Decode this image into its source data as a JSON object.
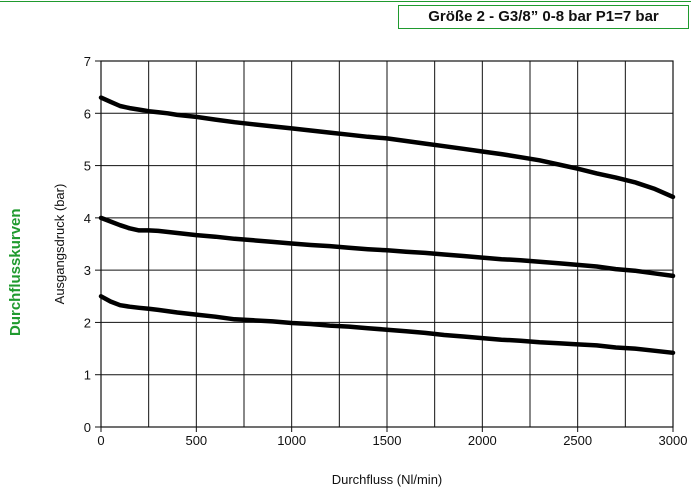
{
  "side_title": "Durchflusskurven",
  "header_label": "Größe 2 - G3/8” 0-8 bar P1=7 bar",
  "colors": {
    "accent": "#1f9a2e",
    "grid": "#111111",
    "series": "#000000"
  },
  "chart_data": {
    "type": "line",
    "title": "",
    "xlabel": "Durchfluss (Nl/min)",
    "ylabel": "Ausgangsdruck (bar)",
    "xlim": [
      0,
      3000
    ],
    "ylim": [
      0,
      7
    ],
    "xticks": [
      0,
      500,
      1000,
      1500,
      2000,
      2500,
      3000
    ],
    "yticks": [
      0,
      1,
      2,
      3,
      4,
      5,
      6,
      7
    ],
    "grid": true,
    "series": [
      {
        "x": [
          0,
          50,
          100,
          150,
          200,
          250,
          300,
          350,
          400,
          500,
          600,
          700,
          800,
          900,
          1000,
          1100,
          1200,
          1300,
          1400,
          1500,
          1600,
          1700,
          1800,
          1900,
          2000,
          2100,
          2200,
          2300,
          2400,
          2500,
          2600,
          2700,
          2800,
          2900,
          3000
        ],
        "y": [
          6.3,
          6.22,
          6.14,
          6.1,
          6.07,
          6.04,
          6.02,
          6.0,
          5.97,
          5.93,
          5.88,
          5.83,
          5.79,
          5.75,
          5.71,
          5.67,
          5.63,
          5.59,
          5.55,
          5.52,
          5.47,
          5.42,
          5.37,
          5.32,
          5.27,
          5.22,
          5.16,
          5.1,
          5.02,
          4.94,
          4.85,
          4.77,
          4.68,
          4.56,
          4.4
        ]
      },
      {
        "x": [
          0,
          50,
          100,
          150,
          200,
          250,
          300,
          400,
          500,
          600,
          700,
          800,
          900,
          1000,
          1100,
          1200,
          1300,
          1400,
          1500,
          1600,
          1700,
          1800,
          1900,
          2000,
          2100,
          2200,
          2300,
          2400,
          2500,
          2600,
          2700,
          2800,
          2900,
          3000
        ],
        "y": [
          4.0,
          3.93,
          3.86,
          3.8,
          3.76,
          3.76,
          3.75,
          3.71,
          3.67,
          3.64,
          3.6,
          3.57,
          3.54,
          3.51,
          3.48,
          3.46,
          3.43,
          3.4,
          3.38,
          3.35,
          3.33,
          3.3,
          3.27,
          3.24,
          3.21,
          3.19,
          3.16,
          3.13,
          3.1,
          3.07,
          3.02,
          2.99,
          2.94,
          2.89
        ]
      },
      {
        "x": [
          0,
          50,
          100,
          150,
          200,
          250,
          300,
          400,
          500,
          600,
          700,
          800,
          900,
          1000,
          1100,
          1200,
          1300,
          1400,
          1500,
          1600,
          1700,
          1800,
          1900,
          2000,
          2100,
          2200,
          2300,
          2400,
          2500,
          2600,
          2700,
          2800,
          2900,
          3000
        ],
        "y": [
          2.5,
          2.4,
          2.33,
          2.3,
          2.28,
          2.26,
          2.24,
          2.19,
          2.15,
          2.11,
          2.06,
          2.04,
          2.02,
          1.99,
          1.97,
          1.94,
          1.92,
          1.89,
          1.86,
          1.83,
          1.8,
          1.76,
          1.73,
          1.7,
          1.67,
          1.65,
          1.62,
          1.6,
          1.58,
          1.56,
          1.52,
          1.5,
          1.46,
          1.42
        ]
      }
    ]
  }
}
